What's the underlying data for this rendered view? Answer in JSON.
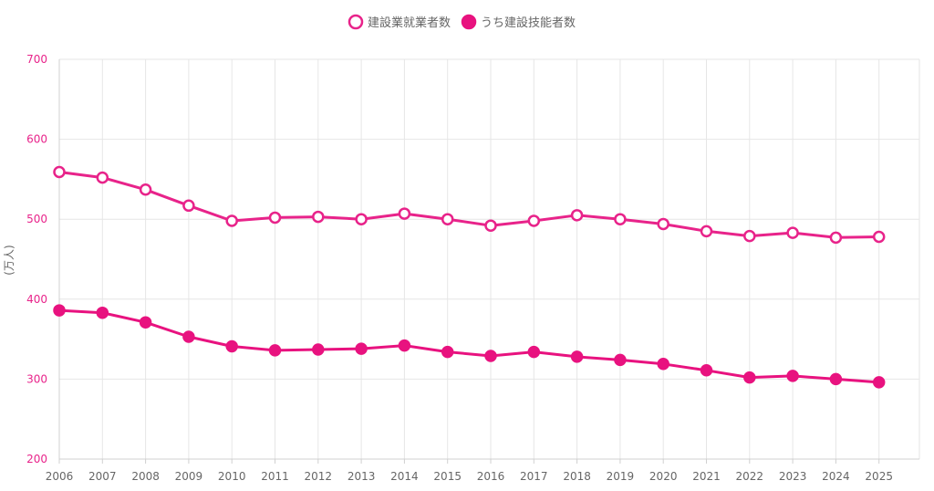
{
  "chart_data": {
    "type": "line",
    "ylabel": "(万人)",
    "ylim": [
      200,
      700
    ],
    "yticks": [
      200,
      300,
      400,
      500,
      600,
      700
    ],
    "x": [
      "2006",
      "2007",
      "2008",
      "2009",
      "2010",
      "2011",
      "2012",
      "2013",
      "2014",
      "2015",
      "2016",
      "2017",
      "2018",
      "2019",
      "2020",
      "2021",
      "2022",
      "2023",
      "2024",
      "2025"
    ],
    "grid": true,
    "legend_position": "top-center",
    "series": [
      {
        "name": "建設業就業者数",
        "marker": "hollow-circle",
        "color": "#e8238a",
        "values": [
          559,
          552,
          537,
          517,
          498,
          502,
          503,
          500,
          507,
          500,
          492,
          498,
          505,
          500,
          494,
          485,
          479,
          483,
          477,
          478
        ]
      },
      {
        "name": "うち建設技能者数",
        "marker": "filled-circle",
        "color": "#e8127f",
        "values": [
          386,
          383,
          371,
          353,
          341,
          336,
          337,
          338,
          342,
          334,
          329,
          334,
          328,
          324,
          319,
          311,
          302,
          304,
          300,
          296
        ]
      }
    ]
  }
}
